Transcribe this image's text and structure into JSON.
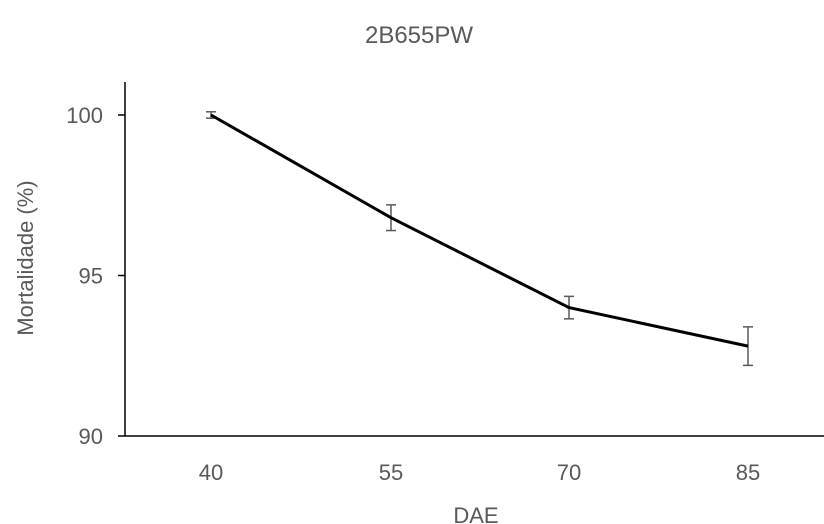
{
  "chart_data": {
    "type": "line",
    "title": "2B655PW",
    "xlabel": "DAE",
    "ylabel": "Mortalidade (%)",
    "categories": [
      "40",
      "55",
      "70",
      "85"
    ],
    "series": [
      {
        "values": [
          100,
          96.8,
          94.0,
          92.8
        ],
        "error": [
          0.1,
          0.4,
          0.35,
          0.6
        ]
      }
    ],
    "ylim": [
      90,
      100
    ],
    "yticks": [
      90,
      95,
      100
    ],
    "grid": false,
    "legend": "none",
    "colors": {
      "line": "#000000",
      "error_bar": "#595959",
      "text": "#595959"
    }
  }
}
